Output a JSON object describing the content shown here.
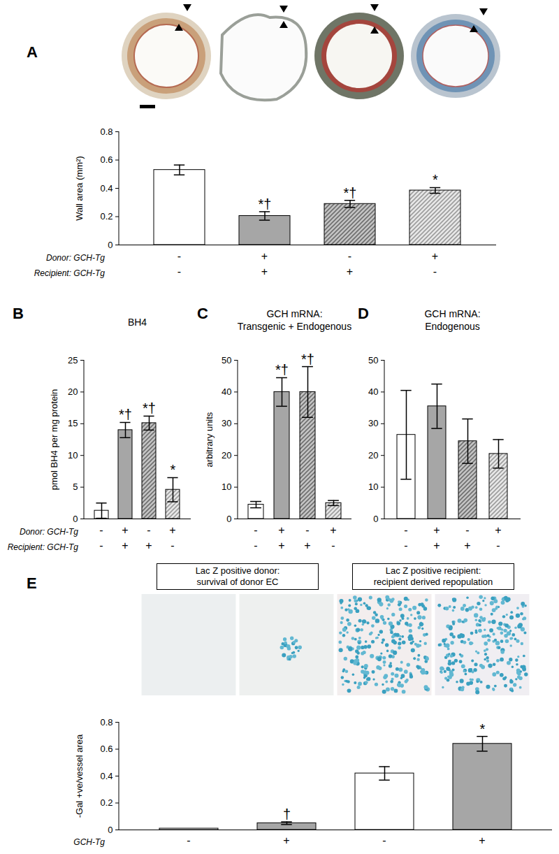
{
  "chart_data": [
    {
      "type": "bar",
      "panel": "A",
      "y_label": "Wall area (mm²)",
      "categories": [
        null,
        null,
        null,
        null
      ],
      "values": [
        0.53,
        0.205,
        0.29,
        0.385
      ],
      "errors": [
        0.035,
        0.03,
        0.025,
        0.02
      ],
      "significance": [
        null,
        "*†",
        "*†",
        "*"
      ],
      "colors": [
        "#ffffff",
        "#a6a6a6",
        "url(#hatchDark)",
        "url(#hatchLight)"
      ],
      "ylim": [
        0,
        0.8
      ],
      "yticks": [
        0,
        0.2,
        0.4,
        0.6,
        0.8
      ],
      "rows": [
        {
          "label": "Donor: GCH-Tg",
          "values": [
            "-",
            "+",
            "-",
            "+"
          ]
        },
        {
          "label": "Recipient: GCH-Tg",
          "values": [
            "-",
            "+",
            "+",
            "-"
          ]
        }
      ]
    },
    {
      "type": "bar",
      "panel": "B",
      "title": "BH4",
      "y_label": "pmol BH4 per mg protein",
      "categories": [
        null,
        null,
        null,
        null
      ],
      "values": [
        1.3,
        14,
        15.1,
        4.6
      ],
      "errors": [
        1.2,
        1.2,
        1.1,
        1.9
      ],
      "significance": [
        null,
        "*†",
        "*†",
        "*"
      ],
      "colors": [
        "#ffffff",
        "#a6a6a6",
        "url(#hatchDark)",
        "url(#hatchLight)"
      ],
      "ylim": [
        0,
        25
      ],
      "yticks": [
        0,
        5,
        10,
        15,
        20,
        25
      ],
      "rows": [
        {
          "label": "Donor: GCH-Tg",
          "values": [
            "-",
            "+",
            "-",
            "+"
          ]
        },
        {
          "label": "Recipient: GCH-Tg",
          "values": [
            "-",
            "+",
            "+",
            "-"
          ]
        }
      ]
    },
    {
      "type": "bar",
      "panel": "C",
      "title": "GCH mRNA:\nTransgenic + Endogenous",
      "y_label": "arbitrary units",
      "categories": [
        null,
        null,
        null,
        null
      ],
      "values": [
        4.5,
        40,
        40,
        5
      ],
      "errors": [
        1,
        4.5,
        8,
        0.8
      ],
      "significance": [
        null,
        "*†",
        "*†",
        null
      ],
      "colors": [
        "#ffffff",
        "#a6a6a6",
        "url(#hatchDark)",
        "url(#hatchLight)"
      ],
      "ylim": [
        0,
        50
      ],
      "yticks": [
        0,
        10,
        20,
        30,
        40,
        50
      ],
      "rows": [
        {
          "values": [
            "-",
            "+",
            "-",
            "+"
          ]
        },
        {
          "values": [
            "-",
            "+",
            "+",
            "-"
          ]
        }
      ]
    },
    {
      "type": "bar",
      "panel": "D",
      "title": "GCH mRNA:\nEndogenous",
      "categories": [
        null,
        null,
        null,
        null
      ],
      "values": [
        26.5,
        35.5,
        24.5,
        20.5
      ],
      "errors": [
        14,
        7,
        7,
        4.5
      ],
      "colors": [
        "#ffffff",
        "#a6a6a6",
        "url(#hatchDark)",
        "url(#hatchLight)"
      ],
      "ylim": [
        0,
        50
      ],
      "yticks": [
        0,
        10,
        20,
        30,
        40,
        50
      ],
      "rows": [
        {
          "values": [
            "-",
            "+",
            "-",
            "+"
          ]
        },
        {
          "values": [
            "-",
            "+",
            "+",
            "-"
          ]
        }
      ]
    },
    {
      "type": "bar",
      "panel": "E",
      "y_label": "-Gal +ve/vessel area",
      "image_headings": [
        "Lac Z positive donor:\nsurvival of donor EC",
        "Lac Z positive recipient:\nrecipient derived repopulation"
      ],
      "categories": [
        null,
        null,
        null,
        null
      ],
      "values": [
        0.01,
        0.05,
        0.42,
        0.64
      ],
      "errors": [
        null,
        0.01,
        0.05,
        0.055
      ],
      "significance": [
        null,
        "†",
        null,
        "*"
      ],
      "colors": [
        "#ffffff",
        "#a6a6a6",
        "#ffffff",
        "#a6a6a6"
      ],
      "ylim": [
        0,
        0.8
      ],
      "yticks": [
        0,
        0.2,
        0.4,
        0.6,
        0.8
      ],
      "rows": [
        {
          "label": "GCH-Tg",
          "values": [
            "-",
            "+",
            "-",
            "+"
          ]
        }
      ]
    }
  ]
}
